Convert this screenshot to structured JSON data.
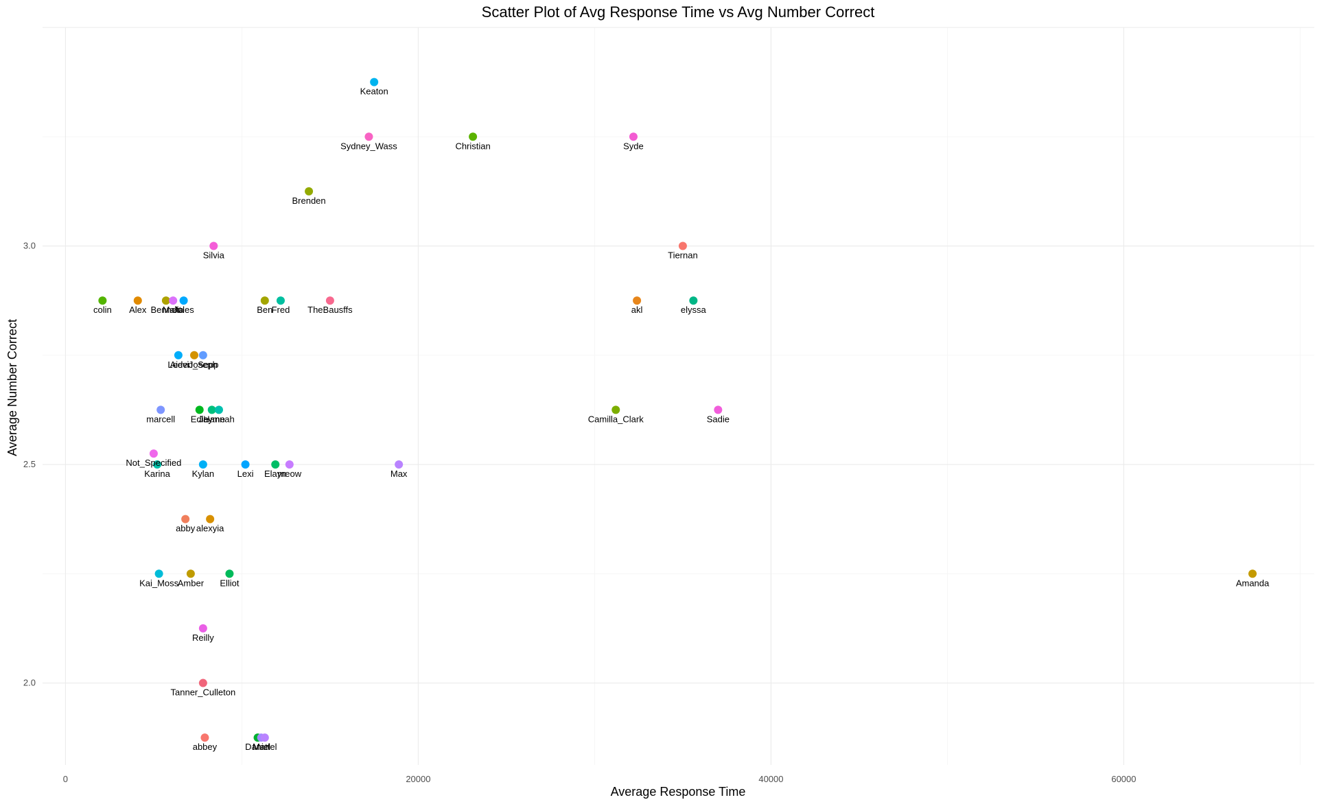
{
  "chart_data": {
    "type": "scatter",
    "title": "Scatter Plot of Avg Response Time vs Avg Number Correct",
    "xlabel": "Average Response Time",
    "ylabel": "Average Number Correct",
    "xlim": [
      -1300,
      70800
    ],
    "ylim": [
      1.8125,
      3.5
    ],
    "x_ticks": [
      0,
      20000,
      40000,
      60000
    ],
    "x_tick_labels": [
      "0",
      "20000",
      "40000",
      "60000"
    ],
    "y_ticks": [
      2.0,
      2.5,
      3.0
    ],
    "y_tick_labels": [
      "2.0",
      "2.5",
      "3.0"
    ],
    "grid": true,
    "legend": "none",
    "points": [
      {
        "label": "Keaton",
        "x": 17500,
        "y": 3.375,
        "color": "#00B4EF"
      },
      {
        "label": "Sydney_Wass",
        "x": 17200,
        "y": 3.25,
        "color": "#F863C4"
      },
      {
        "label": "Christian",
        "x": 23100,
        "y": 3.25,
        "color": "#5BB300"
      },
      {
        "label": "Syde",
        "x": 32200,
        "y": 3.25,
        "color": "#F35CD2"
      },
      {
        "label": "Brenden",
        "x": 13800,
        "y": 3.125,
        "color": "#93AA00"
      },
      {
        "label": "Silvia",
        "x": 8400,
        "y": 3.0,
        "color": "#F45DD8"
      },
      {
        "label": "Tiernan",
        "x": 35000,
        "y": 3.0,
        "color": "#F8766D"
      },
      {
        "label": "colin",
        "x": 2100,
        "y": 2.875,
        "color": "#53B400"
      },
      {
        "label": "Alex",
        "x": 4100,
        "y": 2.875,
        "color": "#E18A00"
      },
      {
        "label": "Bennett",
        "x": 5700,
        "y": 2.875,
        "color": "#AEA200"
      },
      {
        "label": "Malia",
        "x": 6100,
        "y": 2.875,
        "color": "#DB72FB"
      },
      {
        "label": "Jules",
        "x": 6700,
        "y": 2.875,
        "color": "#00A9FF"
      },
      {
        "label": "Ben",
        "x": 11300,
        "y": 2.875,
        "color": "#A3A500"
      },
      {
        "label": "Fred",
        "x": 12200,
        "y": 2.875,
        "color": "#00BFA0"
      },
      {
        "label": "TheBausffs",
        "x": 15000,
        "y": 2.875,
        "color": "#F8698F"
      },
      {
        "label": "akl",
        "x": 32400,
        "y": 2.875,
        "color": "#E7861B"
      },
      {
        "label": "elyssa",
        "x": 35600,
        "y": 2.875,
        "color": "#00B686"
      },
      {
        "label": "Leevi",
        "x": 6400,
        "y": 2.75,
        "color": "#00ADFA"
      },
      {
        "label": "Aiden_Sepp",
        "x": 7300,
        "y": 2.75,
        "color": "#D39200"
      },
      {
        "label": "Joseph",
        "x": 7800,
        "y": 2.75,
        "color": "#619CFF"
      },
      {
        "label": "marcell",
        "x": 5400,
        "y": 2.625,
        "color": "#7E96FF"
      },
      {
        "label": "Edie",
        "x": 7600,
        "y": 2.625,
        "color": "#00B81F"
      },
      {
        "label": "Jayme",
        "x": 8300,
        "y": 2.625,
        "color": "#00BF7D"
      },
      {
        "label": "Hannah",
        "x": 8700,
        "y": 2.625,
        "color": "#00C0AF"
      },
      {
        "label": "Camilla_Clark",
        "x": 31200,
        "y": 2.625,
        "color": "#7CAE00"
      },
      {
        "label": "Sadie",
        "x": 37000,
        "y": 2.625,
        "color": "#F15DDB"
      },
      {
        "label": "Not_Specified",
        "x": 5000,
        "y": 2.525,
        "color": "#EF67EB"
      },
      {
        "label": "Karina",
        "x": 5200,
        "y": 2.5,
        "color": "#00C1AA"
      },
      {
        "label": "Kylan",
        "x": 7800,
        "y": 2.5,
        "color": "#00B0F6"
      },
      {
        "label": "Lexi",
        "x": 10200,
        "y": 2.5,
        "color": "#00A5FF"
      },
      {
        "label": "Elayn",
        "x": 11900,
        "y": 2.5,
        "color": "#00BE67"
      },
      {
        "label": "meow",
        "x": 12700,
        "y": 2.5,
        "color": "#C77CFF"
      },
      {
        "label": "Max",
        "x": 18900,
        "y": 2.5,
        "color": "#B983FF"
      },
      {
        "label": "abby",
        "x": 6800,
        "y": 2.375,
        "color": "#F07F5C"
      },
      {
        "label": "alexyia",
        "x": 8200,
        "y": 2.375,
        "color": "#D89000"
      },
      {
        "label": "Kai_Moss",
        "x": 5300,
        "y": 2.25,
        "color": "#00BCD8"
      },
      {
        "label": "Amber",
        "x": 7100,
        "y": 2.25,
        "color": "#BF9B00"
      },
      {
        "label": "Elliot",
        "x": 9300,
        "y": 2.25,
        "color": "#00BA5A"
      },
      {
        "label": "Amanda",
        "x": 67300,
        "y": 2.25,
        "color": "#C49A00"
      },
      {
        "label": "Reilly",
        "x": 7800,
        "y": 2.125,
        "color": "#EA5FE6"
      },
      {
        "label": "Tanner_Culleton",
        "x": 7800,
        "y": 2.0,
        "color": "#F0657A"
      },
      {
        "label": "abbey",
        "x": 7900,
        "y": 1.875,
        "color": "#F8766D"
      },
      {
        "label": "Daniel",
        "x": 10900,
        "y": 1.875,
        "color": "#00B030"
      },
      {
        "label": "Matt",
        "x": 11100,
        "y": 1.875,
        "color": "#A58AFF"
      },
      {
        "label": "Mariel",
        "x": 11300,
        "y": 1.875,
        "color": "#B983FF"
      }
    ]
  }
}
